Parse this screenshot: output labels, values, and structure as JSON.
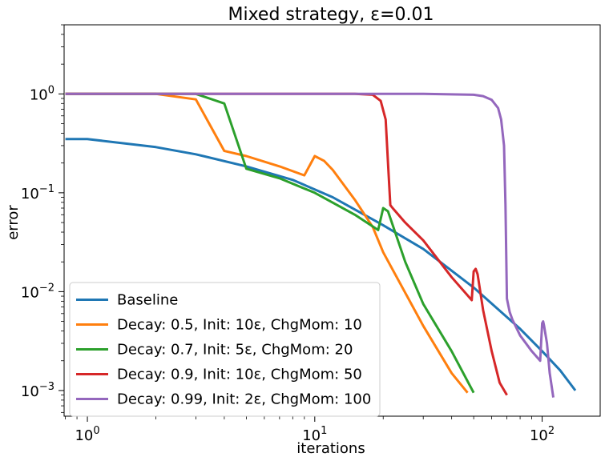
{
  "chart_data": {
    "type": "line",
    "title": "Mixed strategy, ε=0.01",
    "xlabel": "iterations",
    "ylabel": "error",
    "xscale": "log",
    "yscale": "log",
    "xlim": [
      0.79,
      180
    ],
    "ylim": [
      0.00055,
      5
    ],
    "grid": false,
    "legend_position": "lower-left",
    "x_ticks": [
      {
        "value": 1,
        "base": "10",
        "exp": "0"
      },
      {
        "value": 10,
        "base": "10",
        "exp": "1"
      },
      {
        "value": 100,
        "base": "10",
        "exp": "2"
      }
    ],
    "y_ticks": [
      {
        "value": 1,
        "base": "10",
        "exp": "0"
      },
      {
        "value": 0.1,
        "base": "10",
        "exp": "−1"
      },
      {
        "value": 0.01,
        "base": "10",
        "exp": "−2"
      },
      {
        "value": 0.001,
        "base": "10",
        "exp": "−3"
      }
    ],
    "series": [
      {
        "name": "Baseline",
        "color": "#1f77b4",
        "x": [
          0.8,
          1,
          2,
          3,
          5,
          8,
          12,
          20,
          30,
          50,
          80,
          100,
          120,
          140
        ],
        "y": [
          0.35,
          0.35,
          0.29,
          0.245,
          0.185,
          0.135,
          0.09,
          0.047,
          0.027,
          0.011,
          0.0042,
          0.0025,
          0.0016,
          0.001
        ]
      },
      {
        "name": "Decay: 0.5, Init: 10ε, ChgMom: 10",
        "color": "#ff7f0e",
        "x": [
          0.8,
          1,
          2,
          3,
          4,
          5,
          7,
          9,
          10,
          11,
          12,
          15,
          18,
          20,
          30,
          40,
          47
        ],
        "y": [
          1,
          1,
          1,
          0.88,
          0.265,
          0.235,
          0.185,
          0.15,
          0.235,
          0.21,
          0.17,
          0.085,
          0.045,
          0.025,
          0.0045,
          0.0015,
          0.00095
        ]
      },
      {
        "name": "Decay: 0.7, Init: 5ε, ChgMom: 20",
        "color": "#2ca02c",
        "x": [
          0.8,
          1,
          2,
          3,
          4,
          5,
          7,
          10,
          15,
          19,
          20,
          21,
          25,
          30,
          40,
          50
        ],
        "y": [
          1,
          1,
          1,
          1,
          0.8,
          0.175,
          0.14,
          0.1,
          0.06,
          0.042,
          0.07,
          0.065,
          0.02,
          0.0075,
          0.0025,
          0.00095
        ]
      },
      {
        "name": "Decay: 0.9, Init: 10ε, ChgMom: 50",
        "color": "#d62728",
        "x": [
          0.8,
          1,
          5,
          10,
          15,
          18,
          19.5,
          20.5,
          21,
          21.5,
          22,
          25,
          30,
          40,
          49,
          50,
          51,
          52,
          55,
          60,
          65,
          70
        ],
        "y": [
          1,
          1,
          1,
          1,
          1,
          0.98,
          0.85,
          0.55,
          0.2,
          0.075,
          0.07,
          0.05,
          0.033,
          0.014,
          0.0082,
          0.016,
          0.017,
          0.015,
          0.0065,
          0.0025,
          0.0012,
          0.0009
        ]
      },
      {
        "name": "Decay: 0.99, Init: 2ε, ChgMom: 100",
        "color": "#9467bd",
        "x": [
          0.8,
          1,
          10,
          30,
          50,
          55,
          60,
          64,
          66,
          68,
          69,
          70,
          71,
          72,
          74,
          80,
          90,
          98,
          100,
          101,
          102,
          105,
          108,
          112
        ],
        "y": [
          1,
          1,
          1,
          1,
          0.98,
          0.95,
          0.87,
          0.72,
          0.55,
          0.3,
          0.075,
          0.0085,
          0.0072,
          0.0062,
          0.0052,
          0.0036,
          0.0025,
          0.002,
          0.0048,
          0.005,
          0.0045,
          0.003,
          0.0015,
          0.00085
        ]
      }
    ]
  }
}
